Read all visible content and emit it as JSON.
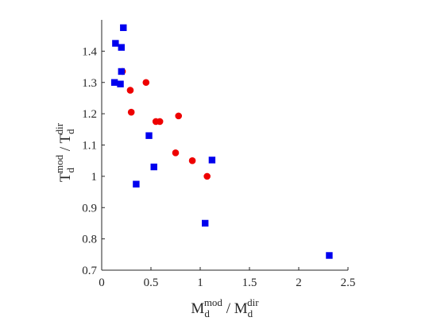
{
  "chart_data": {
    "type": "scatter",
    "xlim": [
      0,
      2.5
    ],
    "ylim": [
      0.7,
      1.5
    ],
    "xticks": [
      0,
      0.5,
      1,
      1.5,
      2,
      2.5
    ],
    "xtick_labels": [
      "0",
      "0.5",
      "1",
      "1.5",
      "2",
      "2.5"
    ],
    "yticks": [
      0.7,
      0.8,
      0.9,
      1.0,
      1.1,
      1.2,
      1.3,
      1.4
    ],
    "ytick_labels": [
      "0.7",
      "0.8",
      "0.9",
      "1",
      "1.1",
      "1.2",
      "1.3",
      "1.4"
    ],
    "xlabel": {
      "base1": "M",
      "sub1": "d",
      "sup1": "mod",
      "sep": " / ",
      "base2": "M",
      "sub2": "d",
      "sup2": "dir"
    },
    "ylabel": {
      "base1": "T",
      "sub1": "d",
      "sup1": "mod",
      "sep": " / ",
      "base2": "T",
      "sub2": "d",
      "sup2": "dir"
    },
    "grid": false,
    "series": [
      {
        "marker": "circle",
        "color": "#ee0000",
        "points": [
          {
            "x": 0.21,
            "y": 1.335
          },
          {
            "x": 0.29,
            "y": 1.275
          },
          {
            "x": 0.3,
            "y": 1.205
          },
          {
            "x": 0.45,
            "y": 1.3
          },
          {
            "x": 0.55,
            "y": 1.175
          },
          {
            "x": 0.59,
            "y": 1.175
          },
          {
            "x": 0.75,
            "y": 1.075
          },
          {
            "x": 0.78,
            "y": 1.193
          },
          {
            "x": 0.92,
            "y": 1.05
          },
          {
            "x": 1.07,
            "y": 1.0
          }
        ]
      },
      {
        "marker": "square",
        "color": "#0000ee",
        "points": [
          {
            "x": 0.22,
            "y": 1.475
          },
          {
            "x": 0.14,
            "y": 1.425
          },
          {
            "x": 0.2,
            "y": 1.412
          },
          {
            "x": 0.2,
            "y": 1.335
          },
          {
            "x": 0.13,
            "y": 1.3
          },
          {
            "x": 0.19,
            "y": 1.295
          },
          {
            "x": 0.48,
            "y": 1.13
          },
          {
            "x": 0.53,
            "y": 1.03
          },
          {
            "x": 0.35,
            "y": 0.975
          },
          {
            "x": 1.12,
            "y": 1.052
          },
          {
            "x": 1.05,
            "y": 0.85
          },
          {
            "x": 2.31,
            "y": 0.747
          }
        ]
      }
    ]
  }
}
